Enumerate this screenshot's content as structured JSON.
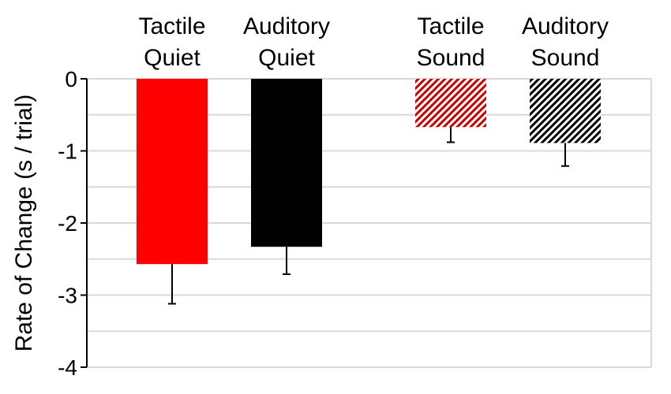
{
  "chart_data": {
    "type": "bar",
    "title": "",
    "xlabel": "",
    "ylabel": "Rate of Change (s / trial)",
    "ylim": [
      -4,
      0
    ],
    "yticks": [
      "0",
      "-1",
      "-2",
      "-3",
      "-4"
    ],
    "grid": true,
    "legend": "none",
    "categories": [
      {
        "line1": "Tactile",
        "line2": "Quiet"
      },
      {
        "line1": "Auditory",
        "line2": "Quiet"
      },
      {
        "line1": "Tactile",
        "line2": "Sound"
      },
      {
        "line1": "Auditory",
        "line2": "Sound"
      }
    ],
    "values": [
      -2.57,
      -2.33,
      -0.67,
      -0.89
    ],
    "errors": [
      0.55,
      0.38,
      0.21,
      0.32
    ],
    "colors": [
      "#ff0000",
      "#000000",
      "#cc0000",
      "#000000"
    ],
    "fills": [
      "solid",
      "solid",
      "hatched",
      "hatched"
    ]
  }
}
